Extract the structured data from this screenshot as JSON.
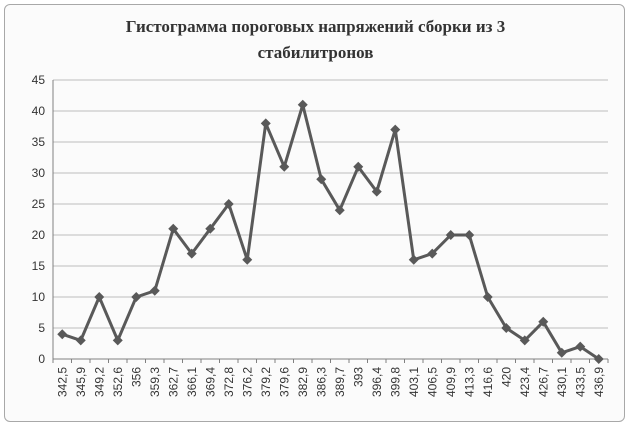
{
  "chart_data": {
    "type": "line",
    "title_line1": "Гистограмма пороговых напряжений сборки из 3",
    "title_line2": "стабилитронов",
    "categories": [
      "342,5",
      "345,9",
      "349,2",
      "352,6",
      "356",
      "359,3",
      "362,7",
      "366,1",
      "369,4",
      "372,8",
      "376,2",
      "379,2",
      "379,6",
      "382,9",
      "386,3",
      "389,7",
      "393",
      "396,4",
      "399,8",
      "403,1",
      "406,5",
      "409,9",
      "413,3",
      "416,6",
      "420",
      "423,4",
      "426,7",
      "430,1",
      "433,5",
      "436,9"
    ],
    "series": [
      {
        "values": [
          4,
          3,
          10,
          3,
          10,
          11,
          21,
          17,
          21,
          25,
          16,
          38,
          31,
          41,
          29,
          24,
          31,
          27,
          37,
          16,
          17,
          20,
          20,
          10,
          5,
          3,
          6,
          1,
          2,
          0
        ]
      }
    ],
    "yticks": [
      "0",
      "5",
      "10",
      "15",
      "20",
      "25",
      "30",
      "35",
      "40",
      "45"
    ],
    "ylim": [
      0,
      45
    ],
    "grid": true,
    "colors": {
      "line": "#595959",
      "marker": "#595959",
      "grid": "#bdbdbd",
      "axis": "#808080"
    }
  }
}
